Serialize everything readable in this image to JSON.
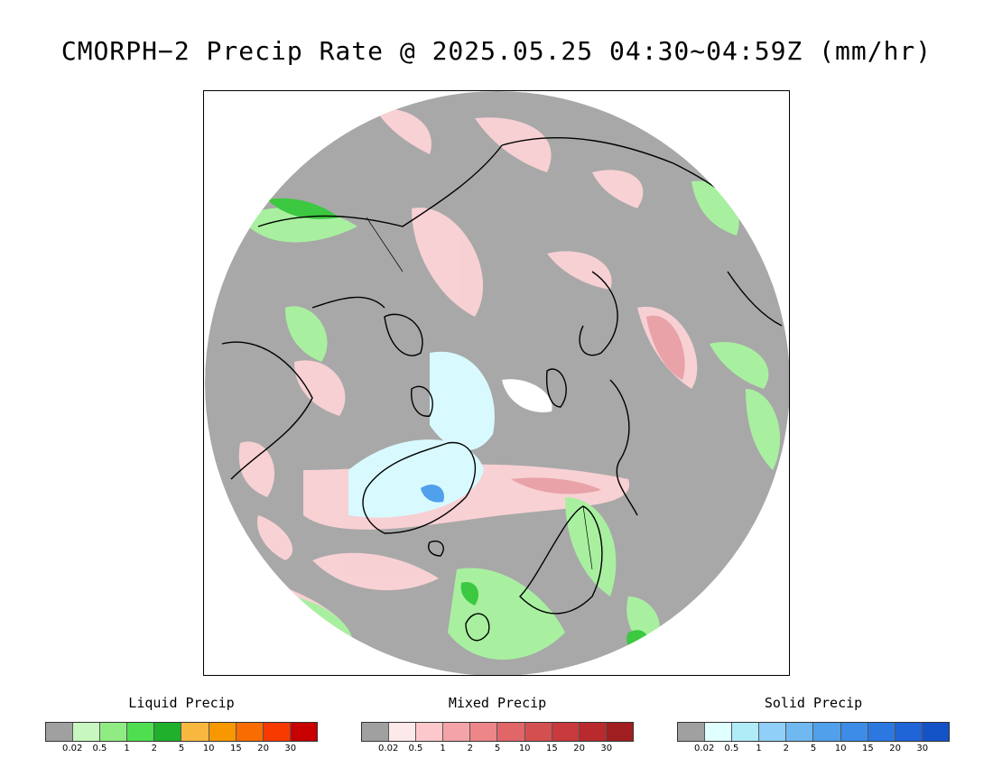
{
  "title": "CMORPH−2 Precip Rate @ 2025.05.25 04:30~04:59Z (mm/hr)",
  "map": {
    "projection": "polar stereographic, North Pole",
    "icon": "arctic-precipitation-map",
    "colors": {
      "background": "#a8a8a8",
      "frame": "#000000",
      "coastline": "#000000"
    }
  },
  "legends": [
    {
      "key": "liquid",
      "title": "Liquid Precip",
      "colors": [
        "#a0a0a0",
        "#c8f7c0",
        "#90ec82",
        "#4ede50",
        "#20b02c",
        "#f8b840",
        "#f89800",
        "#f86c00",
        "#f83a00",
        "#c80000"
      ],
      "ticks": [
        "0.02",
        "0.5",
        "1",
        "2",
        "5",
        "10",
        "15",
        "20",
        "30"
      ]
    },
    {
      "key": "mixed",
      "title": "Mixed Precip",
      "colors": [
        "#a0a0a0",
        "#fde8ea",
        "#fcc8cc",
        "#f4a4a8",
        "#ec8688",
        "#e06668",
        "#d45050",
        "#c83a3c",
        "#b82a2c",
        "#a01e20"
      ],
      "ticks": [
        "0.02",
        "0.5",
        "1",
        "2",
        "5",
        "10",
        "15",
        "20",
        "30"
      ]
    },
    {
      "key": "solid",
      "title": "Solid Precip",
      "colors": [
        "#a0a0a0",
        "#e0ffff",
        "#b0ecf8",
        "#90d0f8",
        "#70b8f0",
        "#50a0ec",
        "#3c8ce8",
        "#2c78e0",
        "#2064d8",
        "#1452c8"
      ],
      "ticks": [
        "0.02",
        "0.5",
        "1",
        "2",
        "5",
        "10",
        "15",
        "20",
        "30"
      ]
    }
  ]
}
